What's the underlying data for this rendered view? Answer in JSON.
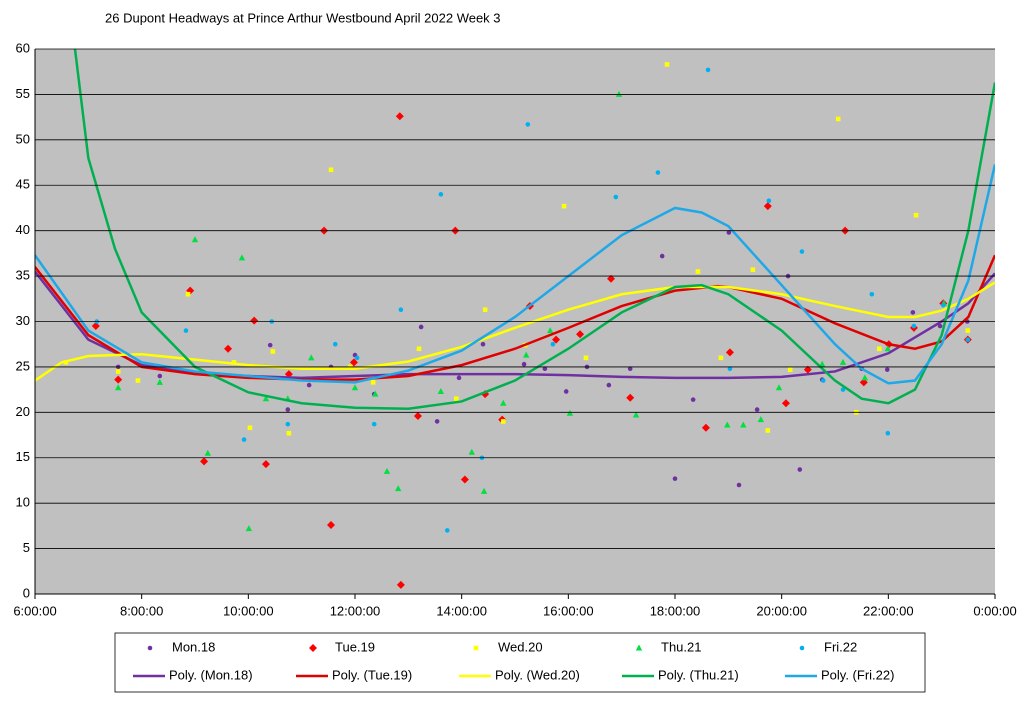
{
  "chart_data": {
    "type": "scatter",
    "title": "26 Dupont Headways at Prince Arthur Westbound April 2022  Week 3",
    "xlim": [
      6,
      24
    ],
    "ylim": [
      0,
      60
    ],
    "xticks": [
      {
        "value": 6,
        "label": "6:00:00"
      },
      {
        "value": 8,
        "label": "8:00:00"
      },
      {
        "value": 10,
        "label": "10:00:00"
      },
      {
        "value": 12,
        "label": "12:00:00"
      },
      {
        "value": 14,
        "label": "14:00:00"
      },
      {
        "value": 16,
        "label": "16:00:00"
      },
      {
        "value": 18,
        "label": "18:00:00"
      },
      {
        "value": 20,
        "label": "20:00:00"
      },
      {
        "value": 22,
        "label": "22:00:00"
      },
      {
        "value": 24,
        "label": "0:00:00"
      }
    ],
    "yticks": [
      0,
      5,
      10,
      15,
      20,
      25,
      30,
      35,
      40,
      45,
      50,
      55,
      60
    ],
    "grid": true,
    "series": [
      {
        "name": "Mon.18",
        "color": "#7030a0",
        "marker": "circle",
        "x": [
          7.56,
          8.34,
          10.41,
          10.74,
          11.14,
          11.55,
          12.0,
          12.36,
          13.24,
          13.54,
          13.95,
          14.4,
          15.17,
          15.56,
          15.96,
          16.35,
          16.76,
          17.16,
          17.76,
          18.0,
          18.34,
          19.01,
          19.2,
          19.54,
          20.12,
          20.34,
          20.76,
          21.5,
          21.98,
          22.46,
          22.97,
          23.48
        ],
        "values": [
          25,
          24,
          27.4,
          20.3,
          23,
          25,
          26.3,
          22,
          29.4,
          19,
          23.8,
          27.5,
          25.3,
          24.8,
          22.3,
          25,
          23,
          24.8,
          37.2,
          12.7,
          21.4,
          39.8,
          12,
          20.3,
          35,
          13.7,
          23.6,
          24.8,
          24.7,
          31,
          29.5,
          30
        ]
      },
      {
        "name": "Tue.19",
        "color": "#ff0000",
        "marker": "diamond",
        "x": [
          7.14,
          7.56,
          8.91,
          9.17,
          9.62,
          10.11,
          10.33,
          10.76,
          11.42,
          11.55,
          11.98,
          12.84,
          12.86,
          13.18,
          13.88,
          14.06,
          14.44,
          14.76,
          15.28,
          15.77,
          16.22,
          16.8,
          17.16,
          18.58,
          19.03,
          19.74,
          20.08,
          20.49,
          21.19,
          21.54,
          22.01,
          22.48,
          23.03,
          23.49
        ],
        "values": [
          29.5,
          23.6,
          33.4,
          14.6,
          27,
          30.1,
          14.3,
          24.2,
          40,
          7.6,
          25.5,
          52.6,
          1,
          19.6,
          40,
          12.6,
          22,
          19.2,
          31.7,
          28,
          28.6,
          34.7,
          21.6,
          18.3,
          26.6,
          42.7,
          21,
          24.7,
          40,
          23.3,
          27.5,
          29.3,
          32,
          28
        ]
      },
      {
        "name": "Wed.20",
        "color": "#ffff00",
        "marker": "square",
        "x": [
          6.58,
          7.56,
          7.93,
          8.87,
          9.73,
          10.03,
          10.46,
          10.76,
          11.55,
          11.91,
          12.34,
          13.2,
          13.9,
          14.44,
          14.78,
          15.19,
          15.92,
          16.33,
          17.85,
          18.43,
          18.86,
          19.46,
          19.74,
          20.16,
          21.06,
          21.4,
          21.83,
          22.52,
          23.49
        ],
        "values": [
          25.5,
          24.5,
          23.5,
          33,
          25.5,
          18.3,
          26.7,
          17.7,
          46.7,
          25,
          23.3,
          27,
          21.5,
          31.3,
          19,
          27.4,
          42.7,
          26,
          58.3,
          35.5,
          26,
          35.7,
          18,
          24.7,
          52.3,
          20,
          27,
          41.7,
          29
        ]
      },
      {
        "name": "Thu.21",
        "color": "#00e040",
        "marker": "triangle",
        "x": [
          7.56,
          8.34,
          9.0,
          9.24,
          9.88,
          10.01,
          10.33,
          10.74,
          11.18,
          12.0,
          12.38,
          12.6,
          12.81,
          13.61,
          14.19,
          14.42,
          14.78,
          15.21,
          15.66,
          16.03,
          16.95,
          17.27,
          18.98,
          19.28,
          19.61,
          19.95,
          20.76,
          21.15,
          21.56,
          21.99,
          23.04
        ],
        "values": [
          22.7,
          23.3,
          39,
          15.5,
          37,
          7.2,
          21.5,
          21.5,
          26,
          22.7,
          22,
          13.5,
          11.6,
          22.3,
          15.6,
          11.3,
          21,
          26.3,
          29,
          19.9,
          55,
          19.7,
          18.6,
          18.6,
          19.2,
          22.7,
          25.3,
          25.5,
          23.8,
          27,
          32
        ]
      },
      {
        "name": "Fri.22",
        "color": "#00b0f0",
        "marker": "circle",
        "x": [
          7.16,
          8.83,
          9.92,
          10.44,
          10.74,
          11.63,
          12.04,
          12.36,
          12.86,
          13.61,
          13.73,
          14.38,
          15.24,
          15.71,
          16.89,
          17.68,
          18.62,
          19.03,
          19.76,
          20.38,
          20.78,
          21.15,
          21.69,
          21.99,
          22.48,
          23.03,
          23.49
        ],
        "values": [
          30,
          29,
          17,
          30,
          18.7,
          27.5,
          26,
          18.7,
          31.3,
          44,
          7,
          15,
          51.7,
          27.5,
          43.7,
          46.4,
          57.7,
          24.8,
          43.3,
          37.7,
          23.5,
          22.5,
          33,
          17.7,
          29.5,
          31.8,
          28
        ]
      }
    ],
    "trendlines": [
      {
        "name": "Poly. (Mon.18)",
        "color": "#7030a0",
        "x": [
          6,
          7,
          8,
          9,
          10,
          11,
          12,
          13,
          14,
          15,
          16,
          17,
          18,
          19,
          20,
          21,
          22,
          23,
          23.5,
          24
        ],
        "values": [
          35.5,
          28,
          25.2,
          24.3,
          24,
          23.8,
          24,
          24.2,
          24.2,
          24.2,
          24.1,
          23.9,
          23.8,
          23.8,
          23.9,
          24.5,
          26.5,
          30,
          32,
          35.3
        ]
      },
      {
        "name": "Poly. (Tue.19)",
        "color": "#e00000",
        "x": [
          6,
          7,
          8,
          9,
          10,
          11,
          12,
          13,
          14,
          15,
          16,
          17,
          18,
          18.8,
          19,
          20,
          21,
          22,
          22.5,
          23,
          23.5,
          24
        ],
        "values": [
          36,
          28.5,
          25,
          24.2,
          23.8,
          23.6,
          23.6,
          24,
          25.2,
          27,
          29.3,
          31.7,
          33.4,
          33.9,
          33.8,
          32.5,
          29.8,
          27.5,
          27,
          27.8,
          30.5,
          37.3
        ]
      },
      {
        "name": "Poly. (Wed.20)",
        "color": "#ffff00",
        "x": [
          6,
          6.5,
          7,
          8,
          9,
          10,
          11,
          12,
          13,
          14,
          15,
          16,
          17,
          18,
          19,
          20,
          21,
          22,
          22.5,
          23,
          23.5,
          24
        ],
        "values": [
          23.5,
          25.5,
          26.2,
          26.4,
          25.8,
          25.2,
          24.8,
          24.8,
          25.6,
          27.2,
          29.3,
          31.3,
          33,
          33.8,
          33.8,
          33,
          31.7,
          30.5,
          30.5,
          31.2,
          32.5,
          34.3
        ]
      },
      {
        "name": "Poly. (Thu.21)",
        "color": "#00b050",
        "x": [
          6.75,
          7,
          7.5,
          8,
          9,
          10,
          11,
          12,
          13,
          14,
          15,
          16,
          17,
          18,
          18.5,
          19,
          20,
          21,
          21.5,
          22,
          22.5,
          23,
          23.5,
          24
        ],
        "values": [
          60,
          48,
          38,
          31,
          25,
          22.2,
          21,
          20.5,
          20.4,
          21.2,
          23.5,
          27,
          31,
          33.8,
          34,
          33,
          29,
          23.5,
          21.5,
          21,
          22.5,
          28.5,
          40,
          56.3
        ]
      },
      {
        "name": "Poly. (Fri.22)",
        "color": "#1fa8e8",
        "x": [
          6,
          7,
          8,
          9,
          10,
          11,
          12,
          13,
          14,
          15,
          16,
          17,
          18,
          18.5,
          19,
          20,
          21,
          21.5,
          22,
          22.5,
          23,
          23.5,
          24
        ],
        "values": [
          37.3,
          29,
          25.5,
          24.5,
          24,
          23.5,
          23.3,
          24.6,
          26.8,
          30.5,
          35,
          39.5,
          42.5,
          42,
          40.5,
          34,
          27.5,
          24.8,
          23.2,
          23.5,
          27.5,
          34.5,
          47.3
        ]
      }
    ]
  }
}
